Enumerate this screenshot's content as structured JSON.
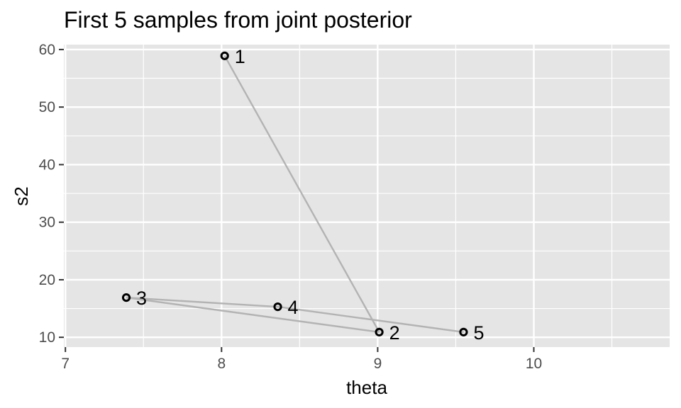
{
  "chart_data": {
    "type": "scatter",
    "title": "First 5 samples from joint posterior",
    "xlabel": "theta",
    "ylabel": "s2",
    "xlim": [
      6.99,
      10.87
    ],
    "ylim": [
      8.3,
      60.85
    ],
    "x_ticks": [
      7,
      8,
      9,
      10
    ],
    "x_tick_labels": [
      "7",
      "8",
      "9",
      "10"
    ],
    "y_ticks": [
      10,
      20,
      30,
      40,
      50,
      60
    ],
    "y_tick_labels": [
      "10",
      "20",
      "30",
      "40",
      "50",
      "60"
    ],
    "grid": true,
    "legend": "none",
    "connect_points_in_order": true,
    "points": [
      {
        "label": "1",
        "x": 8.02,
        "y": 58.9
      },
      {
        "label": "2",
        "x": 9.01,
        "y": 10.9
      },
      {
        "label": "3",
        "x": 7.39,
        "y": 16.9
      },
      {
        "label": "4",
        "x": 8.36,
        "y": 15.3
      },
      {
        "label": "5",
        "x": 9.55,
        "y": 10.9
      }
    ],
    "colors": {
      "panel_background": "#e5e5e5",
      "grid": "#ffffff",
      "path": "#b3b3b3",
      "points": "#000000",
      "tick": "#333333"
    }
  }
}
